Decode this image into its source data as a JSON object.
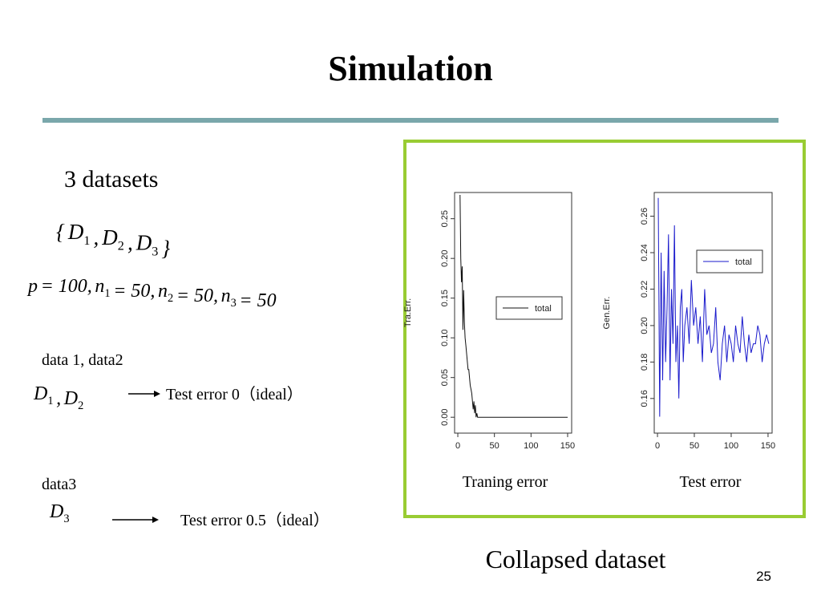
{
  "title": "Simulation",
  "intro": "3 datasets",
  "set_formula": [
    {
      "text": "{"
    },
    {
      "text": "D",
      "sub": "1"
    },
    {
      "text": ","
    },
    {
      "text": "D",
      "sub": "2"
    },
    {
      "text": ","
    },
    {
      "text": "D",
      "sub": "3"
    },
    {
      "text": "}"
    }
  ],
  "param_formula": [
    {
      "text": "p"
    },
    {
      "text": "= 100,"
    },
    {
      "text": "n",
      "sub": "1"
    },
    {
      "text": "= 50,"
    },
    {
      "text": "n",
      "sub": "2"
    },
    {
      "text": "= 50,"
    },
    {
      "text": "n",
      "sub": "3"
    },
    {
      "text": "= 50"
    }
  ],
  "case1": {
    "label": "data 1, data2",
    "formula": [
      {
        "text": "D",
        "sub": "1"
      },
      {
        "text": ","
      },
      {
        "text": "D",
        "sub": "2"
      }
    ],
    "result": "Test error 0（ideal）"
  },
  "case2": {
    "label": "data3",
    "formula": [
      {
        "text": "D",
        "sub": "3"
      }
    ],
    "result": "Test error 0.5（ideal）"
  },
  "captions": [
    "Traning error",
    "Test error"
  ],
  "footer": "Collapsed dataset",
  "page_number": "25",
  "chart_data": [
    {
      "type": "line",
      "ylabel": "Tra.Err.",
      "legend": "right",
      "x": [
        3,
        4,
        5,
        6,
        7,
        8,
        9,
        10,
        11,
        12,
        13,
        14,
        15,
        16,
        17,
        18,
        19,
        20,
        21,
        22,
        23,
        24,
        25,
        26,
        27,
        28,
        30,
        40,
        60,
        80,
        100,
        120,
        150
      ],
      "series": [
        {
          "name": "total",
          "color": "#111111",
          "values": [
            0.28,
            0.2,
            0.17,
            0.19,
            0.11,
            0.16,
            0.12,
            0.1,
            0.09,
            0.08,
            0.07,
            0.06,
            0.06,
            0.05,
            0.04,
            0.035,
            0.03,
            0.02,
            0.01,
            0.02,
            0.005,
            0.015,
            0,
            0.005,
            0,
            0,
            0,
            0,
            0,
            0,
            0,
            0,
            0
          ]
        }
      ],
      "xlim": [
        -4.4,
        155.5
      ],
      "xticks": [
        0,
        50,
        100,
        150
      ],
      "ylim": [
        -0.02,
        0.283
      ],
      "yticks": [
        {
          "value": 0,
          "label": "0.00"
        },
        0.05,
        {
          "value": 0.1,
          "label": "0.10"
        },
        0.15,
        {
          "value": 0.2,
          "label": "0.20"
        },
        0.25
      ]
    },
    {
      "type": "line",
      "ylabel": "Gen.Err.",
      "legend": "topright",
      "x": [
        1,
        3,
        5,
        7,
        9,
        11,
        13,
        15,
        17,
        19,
        21,
        23,
        25,
        27,
        29,
        31,
        33,
        35,
        37,
        40,
        43,
        46,
        49,
        52,
        55,
        58,
        61,
        64,
        67,
        70,
        73,
        76,
        79,
        82,
        85,
        88,
        91,
        94,
        97,
        100,
        103,
        106,
        109,
        112,
        115,
        118,
        121,
        124,
        127,
        130,
        133,
        136,
        139,
        142,
        145,
        148,
        151
      ],
      "series": [
        {
          "name": "total",
          "color": "#1a1acc",
          "values": [
            0.27,
            0.15,
            0.24,
            0.17,
            0.23,
            0.18,
            0.21,
            0.25,
            0.17,
            0.22,
            0.19,
            0.255,
            0.18,
            0.2,
            0.16,
            0.21,
            0.22,
            0.18,
            0.2,
            0.21,
            0.19,
            0.225,
            0.2,
            0.21,
            0.19,
            0.205,
            0.18,
            0.22,
            0.195,
            0.2,
            0.185,
            0.19,
            0.21,
            0.18,
            0.17,
            0.19,
            0.2,
            0.18,
            0.195,
            0.19,
            0.18,
            0.2,
            0.19,
            0.185,
            0.205,
            0.19,
            0.18,
            0.195,
            0.185,
            0.19,
            0.19,
            0.2,
            0.195,
            0.18,
            0.19,
            0.195,
            0.19
          ]
        }
      ],
      "xlim": [
        -4.4,
        155.5
      ],
      "xticks": [
        0,
        50,
        100,
        150
      ],
      "ylim": [
        0.141,
        0.273
      ],
      "yticks": [
        0.16,
        0.18,
        {
          "value": 0.2,
          "label": "0.20"
        },
        0.22,
        0.24,
        0.26
      ]
    }
  ]
}
